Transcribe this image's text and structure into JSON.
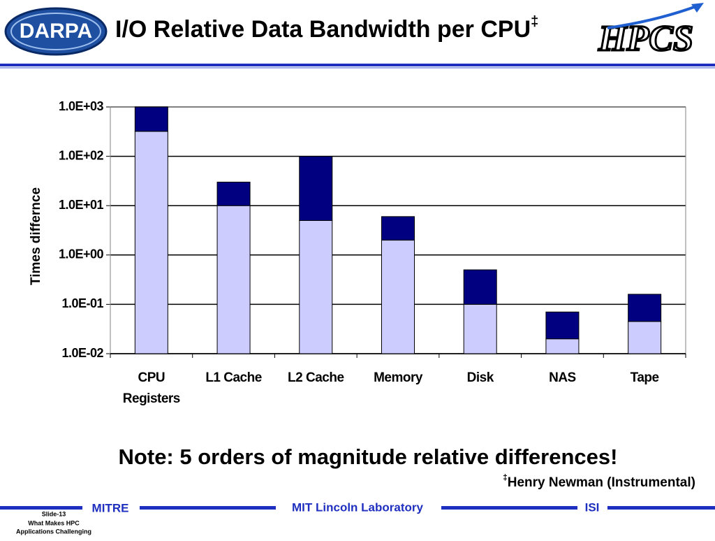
{
  "slide": {
    "logo_left": "DARPA",
    "title": "I/O Relative Data Bandwidth per CPU",
    "title_mark": "‡",
    "logo_right": "HPCS",
    "note": "Note: 5 orders of magnitude relative differences!",
    "footnote_mark": "‡",
    "footnote": "Henry Newman (Instrumental)",
    "footer_left": "MITRE",
    "footer_center": "MIT Lincoln Laboratory",
    "footer_right": "ISI",
    "slide_number": "Slide-13",
    "slide_caption_1": "What Makes HPC",
    "slide_caption_2": "Applications Challenging"
  },
  "chart_data": {
    "type": "stacked_bar",
    "ylabel": "Times differnce",
    "categories": [
      "CPU Registers",
      "L1 Cache",
      "L2 Cache",
      "Memory",
      "Disk",
      "NAS",
      "Tape"
    ],
    "series": [
      {
        "color": "#ccccff",
        "values": [
          320,
          10,
          5,
          2,
          0.1,
          0.02,
          0.045
        ]
      },
      {
        "color": "#000080",
        "values": [
          680,
          20,
          95,
          4,
          0.4,
          0.05,
          0.115
        ]
      }
    ],
    "log_scale": true,
    "ylim": [
      0.01,
      1000
    ],
    "yticks": [
      {
        "value": 0.01,
        "label": "1.0E-02"
      },
      {
        "value": 0.1,
        "label": "1.0E-01"
      },
      {
        "value": 1,
        "label": "1.0E+00"
      },
      {
        "value": 10,
        "label": "1.0E+01"
      },
      {
        "value": 100,
        "label": "1.0E+02"
      },
      {
        "value": 1000,
        "label": "1.0E+03"
      }
    ],
    "grid": true
  }
}
